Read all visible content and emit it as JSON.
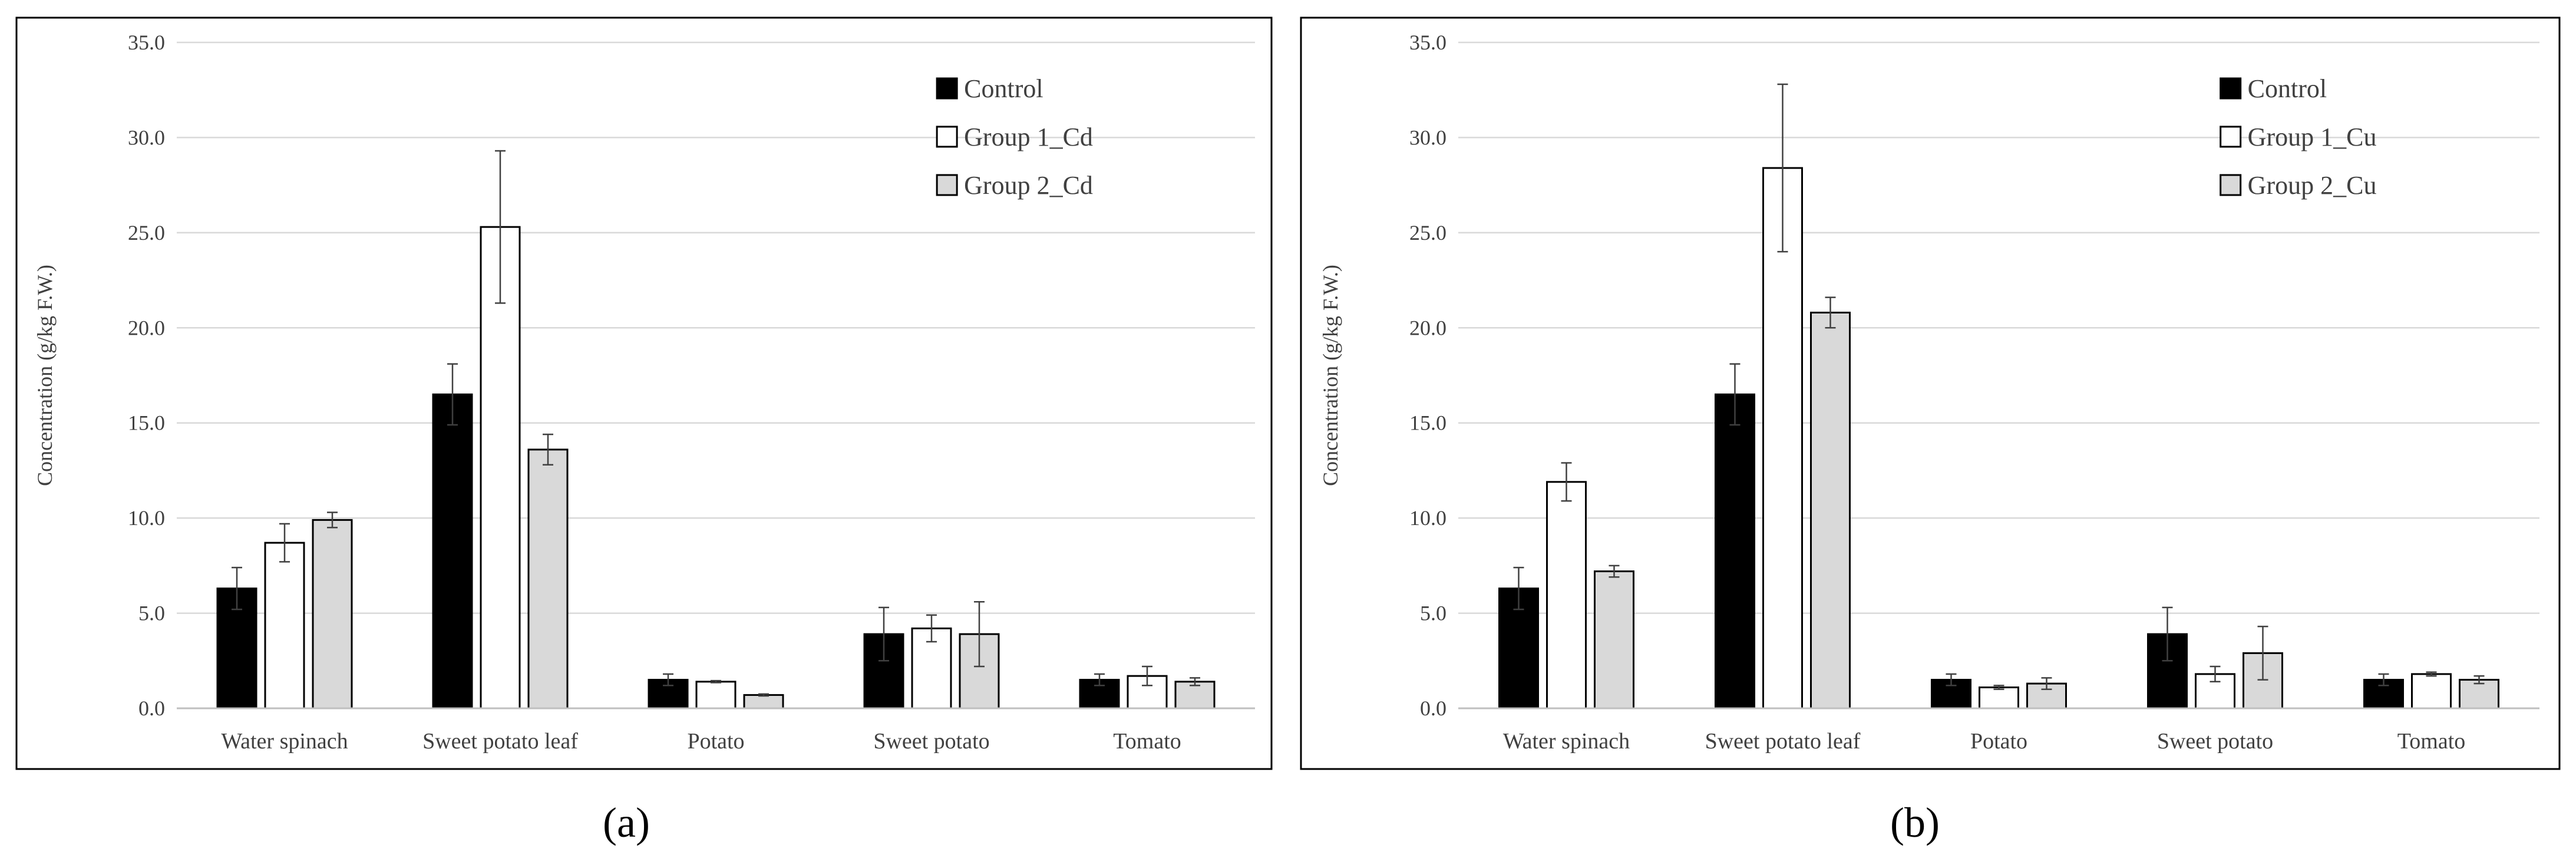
{
  "colors": {
    "control": "#000000",
    "group1": "#ffffff",
    "group2": "#d9d9d9",
    "grid": "#d9d9d9",
    "border": "#000000"
  },
  "chart_data": [
    {
      "type": "bar",
      "panel_label": "(a)",
      "ylabel": "Concentration (g/kg F.W.)",
      "xlabel": "",
      "ylim": [
        0,
        35
      ],
      "yticks": [
        "0.0",
        "5.0",
        "10.0",
        "15.0",
        "20.0",
        "25.0",
        "30.0",
        "35.0"
      ],
      "grid": true,
      "legend_position": "top-right",
      "categories": [
        "Water spinach",
        "Sweet potato leaf",
        "Potato",
        "Sweet potato",
        "Tomato"
      ],
      "series": [
        {
          "name": "Control",
          "color_key": "control",
          "values": [
            6.3,
            16.5,
            1.5,
            3.9,
            1.5
          ],
          "errors": [
            1.1,
            1.6,
            0.3,
            1.4,
            0.3
          ]
        },
        {
          "name": "Group 1_Cd",
          "color_key": "group1",
          "values": [
            8.7,
            25.3,
            1.4,
            4.2,
            1.7
          ],
          "errors": [
            1.0,
            4.0,
            0.05,
            0.7,
            0.5
          ]
        },
        {
          "name": "Group 2_Cd",
          "color_key": "group2",
          "values": [
            9.9,
            13.6,
            0.7,
            3.9,
            1.4
          ],
          "errors": [
            0.4,
            0.8,
            0.05,
            1.7,
            0.2
          ]
        }
      ]
    },
    {
      "type": "bar",
      "panel_label": "(b)",
      "ylabel": "Concentration (g/kg F.W.)",
      "xlabel": "",
      "ylim": [
        0,
        35
      ],
      "yticks": [
        "0.0",
        "5.0",
        "10.0",
        "15.0",
        "20.0",
        "25.0",
        "30.0",
        "35.0"
      ],
      "grid": true,
      "legend_position": "top-right",
      "categories": [
        "Water spinach",
        "Sweet potato leaf",
        "Potato",
        "Sweet potato",
        "Tomato"
      ],
      "series": [
        {
          "name": "Control",
          "color_key": "control",
          "values": [
            6.3,
            16.5,
            1.5,
            3.9,
            1.5
          ],
          "errors": [
            1.1,
            1.6,
            0.3,
            1.4,
            0.3
          ]
        },
        {
          "name": "Group 1_Cu",
          "color_key": "group1",
          "values": [
            11.9,
            28.4,
            1.1,
            1.8,
            1.8
          ],
          "errors": [
            1.0,
            4.4,
            0.1,
            0.4,
            0.1
          ]
        },
        {
          "name": "Group 2_Cu",
          "color_key": "group2",
          "values": [
            7.2,
            20.8,
            1.3,
            2.9,
            1.5
          ],
          "errors": [
            0.3,
            0.8,
            0.3,
            1.4,
            0.2
          ]
        }
      ]
    }
  ]
}
